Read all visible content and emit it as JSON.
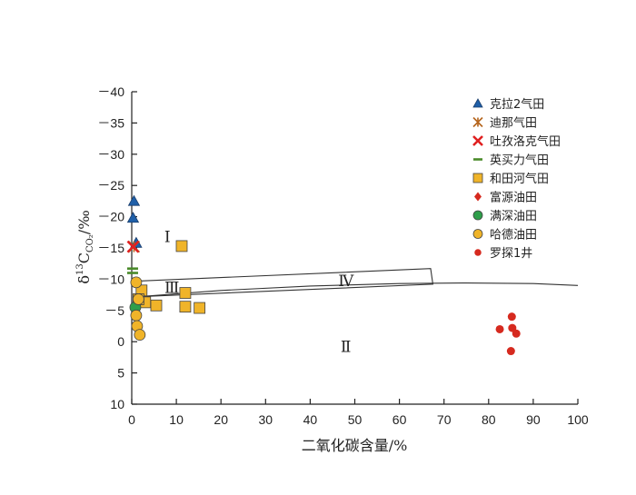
{
  "chart_data": {
    "type": "scatter",
    "xlabel": "二氧化碳含量/%",
    "ylabel_main": "δ",
    "ylabel_sup": "13",
    "ylabel_c": "C",
    "ylabel_sub": "CO₂",
    "ylabel_unit": "/‰",
    "xlim": [
      0,
      100
    ],
    "ylim": [
      -40,
      10
    ],
    "x_ticks": [
      0,
      10,
      20,
      30,
      40,
      50,
      60,
      70,
      80,
      90,
      100
    ],
    "y_ticks": [
      -40,
      -35,
      -30,
      -25,
      -20,
      -15,
      -10,
      -5,
      0,
      5,
      10
    ],
    "y_tick_labels": [
      "－40",
      "－35",
      "－30",
      "－25",
      "－20",
      "－15",
      "－10",
      "－5",
      "0",
      "5",
      "10"
    ],
    "grid": false,
    "legend_position": "top-right",
    "regions": [
      {
        "label": "Ⅰ",
        "x": 8,
        "y": -16.8
      },
      {
        "label": "Ⅱ",
        "x": 48,
        "y": 0.8
      },
      {
        "label": "Ⅲ",
        "x": 9,
        "y": -8.7
      },
      {
        "label": "Ⅳ",
        "x": 48,
        "y": -9.8
      }
    ],
    "boundaries": {
      "region_iv_box": [
        [
          1.5,
          -9.7
        ],
        [
          67,
          -11.7
        ],
        [
          67.5,
          -9.2
        ],
        [
          1.5,
          -7.2
        ]
      ],
      "curve": [
        [
          1.5,
          -7.2
        ],
        [
          20,
          -8.2
        ],
        [
          40,
          -8.9
        ],
        [
          60,
          -9.3
        ],
        [
          75,
          -9.4
        ],
        [
          90,
          -9.3
        ],
        [
          100,
          -9.0
        ]
      ]
    },
    "series": [
      {
        "name": "克拉2气田",
        "marker": "triangle",
        "color": "#1f5fa8",
        "points": [
          [
            0.5,
            -22.5
          ],
          [
            0.3,
            -19.8
          ],
          [
            1.0,
            -15.8
          ]
        ]
      },
      {
        "name": "迪那气田",
        "marker": "asterisk",
        "color": "#b5651d",
        "points": [
          [
            0.5,
            -15.2
          ]
        ]
      },
      {
        "name": "吐孜洛克气田",
        "marker": "x",
        "color": "#e02020",
        "points": [
          [
            0.3,
            -15.2
          ]
        ]
      },
      {
        "name": "英买力气田",
        "marker": "dash",
        "color": "#4a8a2a",
        "points": [
          [
            0.2,
            -11.7
          ],
          [
            0.2,
            -11.0
          ]
        ]
      },
      {
        "name": "和田河气田",
        "marker": "square",
        "color": "#f0b429",
        "points": [
          [
            11.2,
            -15.3
          ],
          [
            2.2,
            -8.2
          ],
          [
            3.0,
            -6.3
          ],
          [
            5.5,
            -5.8
          ],
          [
            12.0,
            -7.8
          ],
          [
            12.0,
            -5.6
          ],
          [
            15.2,
            -5.4
          ],
          [
            1.5,
            -6.8
          ]
        ]
      },
      {
        "name": "富源油田",
        "marker": "diamond",
        "color": "#d62a1f",
        "points": []
      },
      {
        "name": "满深油田",
        "marker": "circle",
        "color": "#2e9e4a",
        "points": [
          [
            0.8,
            -5.5
          ]
        ]
      },
      {
        "name": "哈德油田",
        "marker": "circle",
        "color": "#f0b429",
        "points": [
          [
            1.0,
            -9.5
          ],
          [
            1.5,
            -6.8
          ],
          [
            1.0,
            -4.2
          ],
          [
            1.2,
            -2.5
          ],
          [
            1.8,
            -1.1
          ]
        ]
      },
      {
        "name": "罗探1井",
        "marker": "dot",
        "color": "#d62a1f",
        "points": [
          [
            82.5,
            -2.0
          ],
          [
            85.2,
            -4.0
          ],
          [
            85.3,
            -2.2
          ],
          [
            86.2,
            -1.3
          ],
          [
            85.0,
            1.5
          ]
        ]
      }
    ]
  }
}
